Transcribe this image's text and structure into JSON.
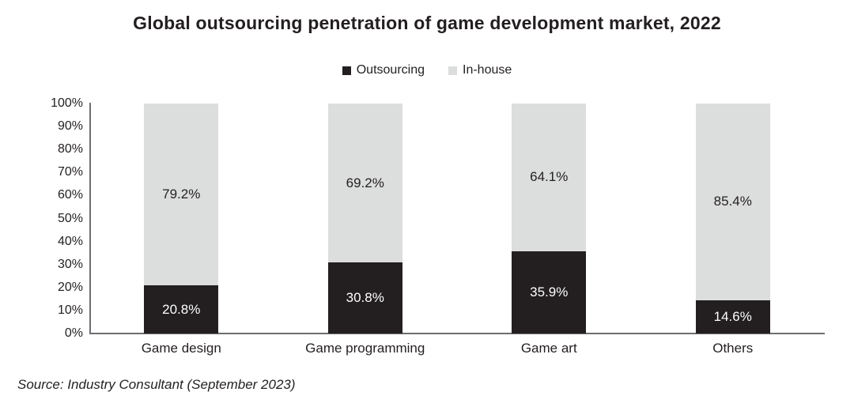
{
  "title": "Global outsourcing penetration of game development market, 2022",
  "source": "Source: Industry Consultant (September 2023)",
  "colors": {
    "outsourcing": "#231f20",
    "in_house": "#dcdddd",
    "axis": "#6d6e71",
    "label_on_dark": "#ffffff",
    "label_on_light": "#231f20"
  },
  "chart_data": {
    "type": "bar",
    "stacked": true,
    "title": "Global outsourcing penetration of game development market, 2022",
    "categories": [
      "Game design",
      "Game programming",
      "Game art",
      "Others"
    ],
    "series": [
      {
        "name": "Outsourcing",
        "color": "#231f20",
        "text_color": "#ffffff",
        "values": [
          20.8,
          30.8,
          35.9,
          14.6
        ]
      },
      {
        "name": "In-house",
        "color": "#dcdddd",
        "text_color": "#231f20",
        "values": [
          79.2,
          69.2,
          64.1,
          85.4
        ]
      }
    ],
    "value_suffix": "%",
    "y_ticks": [
      "100%",
      "90%",
      "80%",
      "70%",
      "60%",
      "50%",
      "40%",
      "30%",
      "20%",
      "10%",
      "0%"
    ],
    "ylim": [
      0,
      100
    ],
    "grid": false,
    "legend_position": "top",
    "xlabel": "",
    "ylabel": ""
  }
}
